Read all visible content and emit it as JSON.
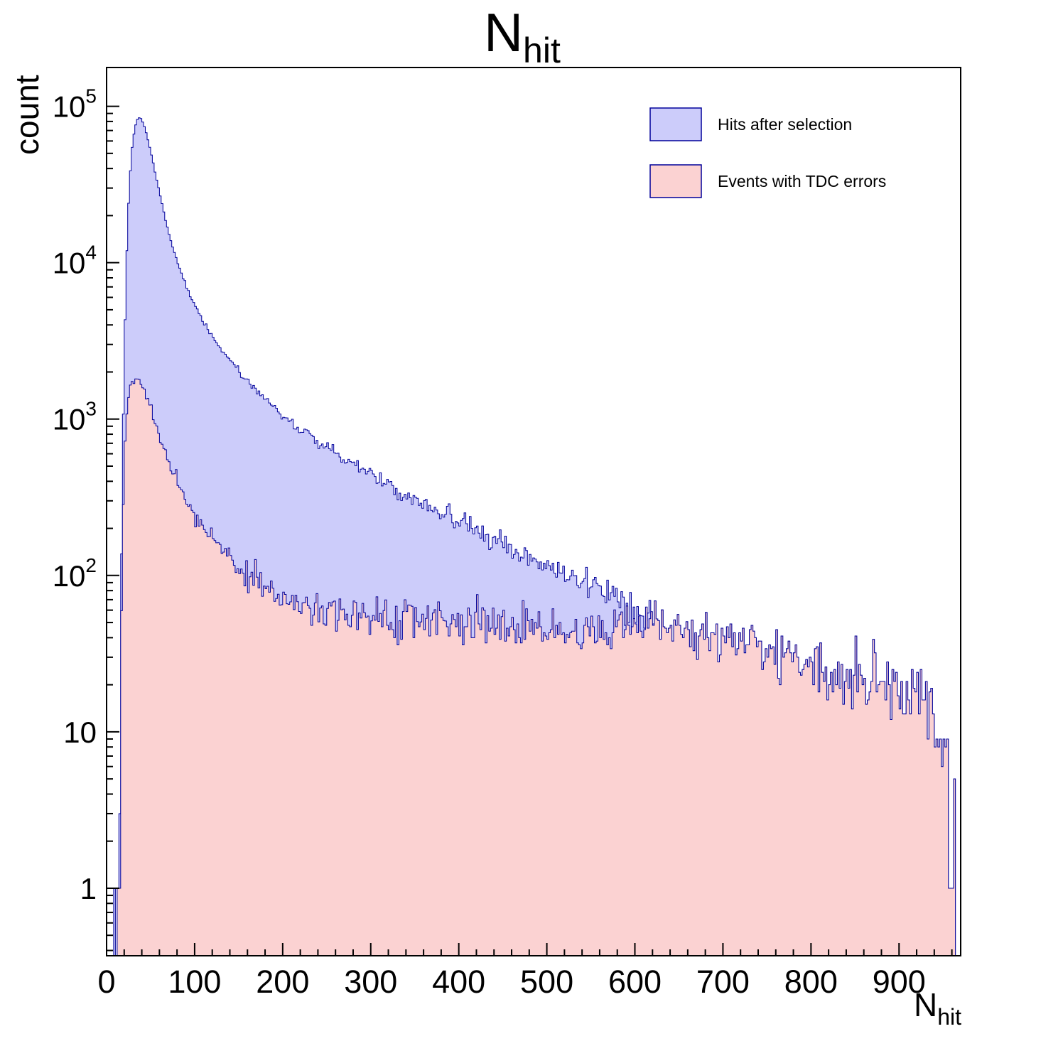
{
  "chart": {
    "title_main": "N",
    "title_sub": "hit",
    "xlabel_main": "N",
    "xlabel_sub": "hit",
    "ylabel": "count"
  },
  "chart_data": {
    "type": "bar",
    "subtype": "filled-step-histogram-log-y",
    "title": "N_hit",
    "xlabel": "N_hit",
    "ylabel": "count",
    "legend_position": "top-right-inside",
    "grid": false,
    "background": "#ffffff",
    "axis_color": "#000000",
    "bin_width": 2,
    "noise_seed": 1337,
    "merge_ratio": 0.88,
    "x_axis": {
      "min": 0,
      "max": 970,
      "major_ticks": [
        0,
        100,
        200,
        300,
        400,
        500,
        600,
        700,
        800,
        900
      ],
      "minor_step": 20
    },
    "y_axis": {
      "scale": "log",
      "min": 0.37,
      "max": 177000,
      "ticks": [
        {
          "v": 1,
          "base": "1",
          "exp": null
        },
        {
          "v": 10,
          "base": "10",
          "exp": null
        },
        {
          "v": 100,
          "base": "10",
          "exp": "2"
        },
        {
          "v": 1000,
          "base": "10",
          "exp": "3"
        },
        {
          "v": 10000,
          "base": "10",
          "exp": "4"
        },
        {
          "v": 100000,
          "base": "10",
          "exp": "5"
        }
      ]
    },
    "series": [
      {
        "name": "Hits after selection",
        "fill": "#ccccfa",
        "line": "#00009a",
        "noise": 1.1,
        "envelope": [
          [
            8,
            0.4
          ],
          [
            9,
            1.6
          ],
          [
            10,
            0.4
          ],
          [
            13,
            0.4
          ],
          [
            14,
            1.2
          ],
          [
            15,
            6
          ],
          [
            16,
            35
          ],
          [
            17,
            140
          ],
          [
            18,
            450
          ],
          [
            19,
            1100
          ],
          [
            20,
            2500
          ],
          [
            22,
            8000
          ],
          [
            24,
            18000
          ],
          [
            26,
            32000
          ],
          [
            28,
            48000
          ],
          [
            30,
            62000
          ],
          [
            32,
            72000
          ],
          [
            34,
            80000
          ],
          [
            36,
            84000
          ],
          [
            38,
            85000
          ],
          [
            40,
            82000
          ],
          [
            42,
            77000
          ],
          [
            45,
            68000
          ],
          [
            48,
            58000
          ],
          [
            52,
            46000
          ],
          [
            56,
            36000
          ],
          [
            60,
            28500
          ],
          [
            65,
            21000
          ],
          [
            70,
            16000
          ],
          [
            75,
            12600
          ],
          [
            80,
            10200
          ],
          [
            85,
            8500
          ],
          [
            90,
            7200
          ],
          [
            95,
            6200
          ],
          [
            100,
            5400
          ],
          [
            110,
            4200
          ],
          [
            120,
            3400
          ],
          [
            130,
            2820
          ],
          [
            140,
            2380
          ],
          [
            150,
            2030
          ],
          [
            160,
            1760
          ],
          [
            170,
            1530
          ],
          [
            180,
            1350
          ],
          [
            190,
            1190
          ],
          [
            200,
            1060
          ],
          [
            215,
            900
          ],
          [
            230,
            780
          ],
          [
            245,
            680
          ],
          [
            260,
            600
          ],
          [
            275,
            535
          ],
          [
            290,
            480
          ],
          [
            305,
            430
          ],
          [
            320,
            385
          ],
          [
            335,
            345
          ],
          [
            350,
            310
          ],
          [
            365,
            280
          ],
          [
            380,
            252
          ],
          [
            395,
            228
          ],
          [
            410,
            207
          ],
          [
            425,
            190
          ],
          [
            440,
            174
          ],
          [
            455,
            159
          ],
          [
            470,
            146
          ],
          [
            485,
            134
          ],
          [
            500,
            122
          ],
          [
            515,
            111
          ],
          [
            530,
            100
          ],
          [
            545,
            90
          ],
          [
            560,
            81
          ],
          [
            575,
            73
          ],
          [
            590,
            66
          ],
          [
            605,
            60
          ],
          [
            620,
            55
          ],
          [
            640,
            48
          ],
          [
            660,
            46
          ],
          [
            680,
            43
          ],
          [
            700,
            40
          ],
          [
            720,
            37
          ],
          [
            740,
            35
          ],
          [
            760,
            32
          ],
          [
            780,
            30
          ],
          [
            800,
            28
          ],
          [
            820,
            26
          ],
          [
            840,
            24
          ],
          [
            860,
            23
          ],
          [
            880,
            21
          ],
          [
            900,
            20
          ],
          [
            915,
            18
          ],
          [
            930,
            15
          ],
          [
            940,
            12
          ],
          [
            946,
            9
          ],
          [
            952,
            6
          ],
          [
            956,
            3
          ],
          [
            960,
            1.6
          ],
          [
            964,
            0.8
          ],
          [
            968,
            0.4
          ]
        ]
      },
      {
        "name": "Events with TDC errors",
        "fill": "#fbd2d2",
        "line": "#00009a",
        "noise": 1.1,
        "envelope": [
          [
            13,
            0.4
          ],
          [
            15,
            2
          ],
          [
            16,
            10
          ],
          [
            17,
            45
          ],
          [
            18,
            130
          ],
          [
            19,
            290
          ],
          [
            20,
            520
          ],
          [
            22,
            950
          ],
          [
            24,
            1300
          ],
          [
            26,
            1550
          ],
          [
            28,
            1680
          ],
          [
            30,
            1760
          ],
          [
            33,
            1800
          ],
          [
            36,
            1780
          ],
          [
            39,
            1700
          ],
          [
            42,
            1580
          ],
          [
            45,
            1430
          ],
          [
            48,
            1280
          ],
          [
            52,
            1090
          ],
          [
            56,
            920
          ],
          [
            60,
            780
          ],
          [
            65,
            645
          ],
          [
            70,
            540
          ],
          [
            75,
            462
          ],
          [
            80,
            400
          ],
          [
            85,
            350
          ],
          [
            90,
            309
          ],
          [
            95,
            276
          ],
          [
            100,
            248
          ],
          [
            110,
            205
          ],
          [
            120,
            174
          ],
          [
            130,
            150
          ],
          [
            140,
            131
          ],
          [
            150,
            116
          ],
          [
            160,
            104
          ],
          [
            170,
            94
          ],
          [
            180,
            86
          ],
          [
            190,
            79
          ],
          [
            200,
            73
          ],
          [
            220,
            65
          ],
          [
            240,
            60
          ],
          [
            260,
            57
          ],
          [
            280,
            55
          ],
          [
            300,
            54
          ],
          [
            320,
            54
          ],
          [
            340,
            54
          ],
          [
            360,
            53
          ],
          [
            380,
            53
          ],
          [
            400,
            52
          ],
          [
            420,
            51
          ],
          [
            440,
            50
          ],
          [
            460,
            49
          ],
          [
            480,
            48
          ],
          [
            500,
            47
          ],
          [
            520,
            46
          ],
          [
            540,
            45
          ],
          [
            560,
            44
          ],
          [
            580,
            43
          ],
          [
            600,
            46
          ],
          [
            620,
            48
          ],
          [
            640,
            48
          ],
          [
            660,
            46
          ],
          [
            680,
            43
          ],
          [
            700,
            40
          ],
          [
            720,
            37
          ],
          [
            740,
            35
          ],
          [
            760,
            32
          ],
          [
            780,
            30
          ],
          [
            800,
            28
          ],
          [
            820,
            26
          ],
          [
            840,
            24
          ],
          [
            860,
            23
          ],
          [
            880,
            21
          ],
          [
            900,
            20
          ],
          [
            915,
            18
          ],
          [
            930,
            15
          ],
          [
            940,
            12
          ],
          [
            946,
            9
          ],
          [
            952,
            6
          ],
          [
            956,
            3
          ],
          [
            960,
            1.6
          ],
          [
            964,
            0.8
          ],
          [
            968,
            0.4
          ]
        ]
      }
    ]
  }
}
